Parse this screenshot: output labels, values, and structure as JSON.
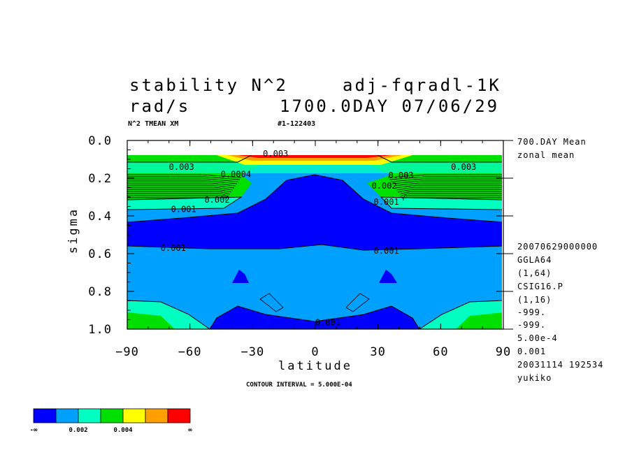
{
  "header": {
    "title_left_1": "stability N^2",
    "title_right_1": "adj-fqradl-1K",
    "title_left_2": "rad/s",
    "title_right_2": "1700.0DAY 07/06/29",
    "subtitle_left": "N^2 TMEAN XM",
    "subtitle_right": "#1-122403"
  },
  "side_info": {
    "top": [
      "700.DAY Mean",
      "zonal mean"
    ],
    "bottom": [
      "20070629000000",
      "GGLA64",
      "(1,64)",
      "CSIG16.P",
      "(1,16)",
      "-999.",
      "-999.",
      "5.00e-4",
      "0.001",
      "20031114 192534",
      "yukiko"
    ]
  },
  "contour_interval": "CONTOUR INTERVAL = 5.000E-04",
  "colorbar": {
    "colors": [
      "#0000ff",
      "#00a0ff",
      "#00ffc0",
      "#00e000",
      "#ffff00",
      "#ffa000",
      "#ff0000"
    ],
    "labels": [
      "-∞",
      "0.002",
      "0.004",
      "∞"
    ]
  },
  "chart_data": {
    "type": "contour",
    "xlabel": "latitude",
    "ylabel": "sigma",
    "xlim": [
      -90,
      90
    ],
    "ylim": [
      1.0,
      0.0
    ],
    "xticks": [
      -90,
      -60,
      -30,
      0,
      30,
      60,
      90
    ],
    "xtick_labels": [
      "−90",
      "−60",
      "−30",
      "0",
      "30",
      "60",
      "90"
    ],
    "yticks": [
      0.0,
      0.2,
      0.4,
      0.6,
      0.8,
      1.0
    ],
    "ytick_labels": [
      "0.0",
      "0.2",
      "0.4",
      "0.6",
      "0.8",
      "1.0"
    ],
    "contour_labels": [
      {
        "text": "0.003",
        "lat": -64,
        "sigma": 0.155
      },
      {
        "text": "0.0004",
        "lat": -38,
        "sigma": 0.195
      },
      {
        "text": "0.002",
        "lat": -47,
        "sigma": 0.33
      },
      {
        "text": "0.001",
        "lat": -63,
        "sigma": 0.38
      },
      {
        "text": "0.001",
        "lat": -68,
        "sigma": 0.585
      },
      {
        "text": "0.003",
        "lat": -19,
        "sigma": 0.085
      },
      {
        "text": "0.003",
        "lat": 41,
        "sigma": 0.2
      },
      {
        "text": "0.003",
        "lat": 71,
        "sigma": 0.155
      },
      {
        "text": "0.002",
        "lat": 33,
        "sigma": 0.255
      },
      {
        "text": "0.001",
        "lat": 34,
        "sigma": 0.34
      },
      {
        "text": "0.001",
        "lat": 34,
        "sigma": 0.6
      },
      {
        "text": "0.001",
        "lat": 6,
        "sigma": 0.98
      }
    ]
  }
}
